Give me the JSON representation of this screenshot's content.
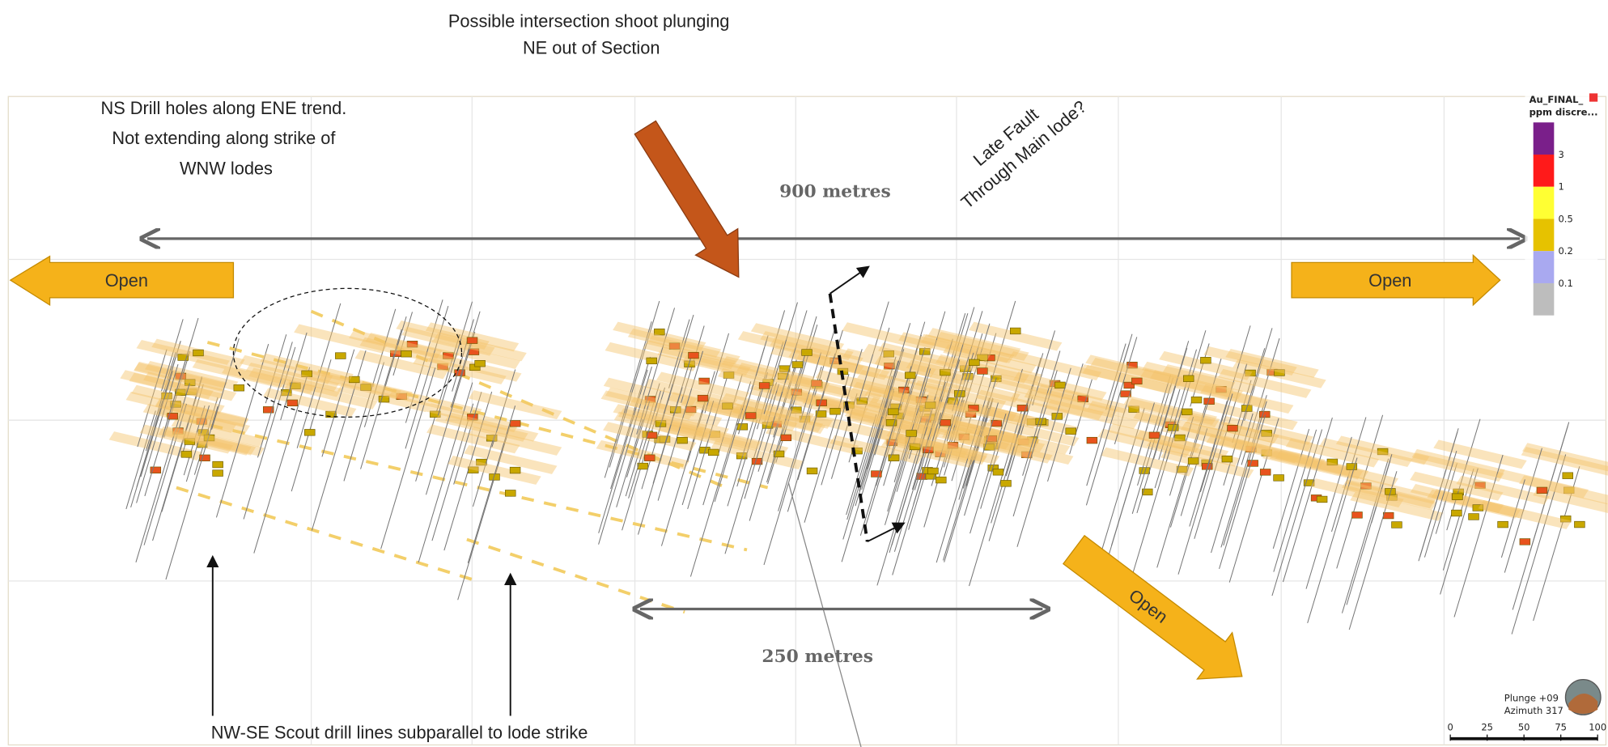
{
  "annotations": {
    "intersection": [
      "Possible intersection shoot plunging",
      "NE  out of Section"
    ],
    "fault": [
      "Late Fault",
      "Through Main lode?"
    ],
    "ns_holes": [
      "NS Drill holes along ENE trend.",
      "Not extending along strike of",
      "WNW lodes"
    ],
    "width_900": "900 metres",
    "width_250": "250 metres",
    "open": [
      "Open",
      "Open",
      "Open"
    ],
    "scout": "NW-SE Scout drill lines subparallel to lode strike"
  },
  "legend": {
    "title": [
      "Au_FINAL_",
      "ppm discre..."
    ],
    "colors": [
      "#7a1f8a",
      "#ff1a1a",
      "#ffff33",
      "#e6c200",
      "#a9a9f0",
      "#bdbdbd"
    ],
    "labels": [
      "3",
      "1",
      "0.5",
      "0.2",
      "0.1"
    ]
  },
  "view": {
    "plunge": "Plunge +09",
    "azimuth": "Azimuth 317",
    "scale_labels": [
      "0",
      "25",
      "50",
      "75",
      "100"
    ]
  }
}
